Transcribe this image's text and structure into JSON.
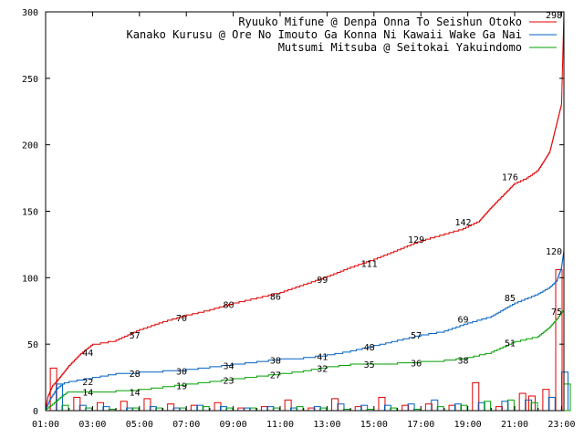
{
  "chart_data": {
    "type": "line",
    "title": "",
    "xlabel": "",
    "ylabel": "",
    "ylim": [
      0,
      300
    ],
    "xlim": [
      0,
      22.1
    ],
    "grid": false,
    "legend_placement": "top-right",
    "x_ticks": [
      "01:00",
      "03:00",
      "05:00",
      "07:00",
      "09:00",
      "11:00",
      "13:00",
      "15:00",
      "17:00",
      "19:00",
      "21:00",
      "23:00"
    ],
    "y_ticks": [
      0,
      50,
      100,
      150,
      200,
      250,
      300
    ],
    "series": [
      {
        "name": "Ryuuko Mifune @ Denpa Onna To Seishun Otoko",
        "color": "#e00000",
        "cumulative": [
          [
            0,
            0
          ],
          [
            0.1,
            10
          ],
          [
            0.3,
            18
          ],
          [
            0.6,
            24
          ],
          [
            1,
            33
          ],
          [
            1.5,
            42
          ],
          [
            2,
            49
          ],
          [
            3,
            52
          ],
          [
            4,
            60
          ],
          [
            5,
            66
          ],
          [
            6,
            71
          ],
          [
            7,
            75
          ],
          [
            8,
            80
          ],
          [
            9,
            84
          ],
          [
            10,
            88
          ],
          [
            11,
            94
          ],
          [
            12,
            100
          ],
          [
            13,
            107
          ],
          [
            14,
            113
          ],
          [
            15,
            120
          ],
          [
            16,
            127
          ],
          [
            17,
            132
          ],
          [
            17.8,
            136
          ],
          [
            18.5,
            142
          ],
          [
            19,
            152
          ],
          [
            19.5,
            161
          ],
          [
            20,
            170
          ],
          [
            20.5,
            174
          ],
          [
            21,
            180
          ],
          [
            21.5,
            194
          ],
          [
            22,
            230
          ],
          [
            22.05,
            265
          ],
          [
            22.1,
            298
          ]
        ],
        "data_labels": [
          {
            "x": 1.8,
            "y": 44,
            "text": "44"
          },
          {
            "x": 3.8,
            "y": 57,
            "text": "57"
          },
          {
            "x": 5.8,
            "y": 70,
            "text": "70"
          },
          {
            "x": 7.8,
            "y": 80,
            "text": "80"
          },
          {
            "x": 9.8,
            "y": 86,
            "text": "86"
          },
          {
            "x": 11.8,
            "y": 99,
            "text": "99"
          },
          {
            "x": 13.8,
            "y": 111,
            "text": "111"
          },
          {
            "x": 15.8,
            "y": 129,
            "text": "129"
          },
          {
            "x": 17.8,
            "y": 142,
            "text": "142"
          },
          {
            "x": 19.8,
            "y": 176,
            "text": "176"
          },
          {
            "x": 21.8,
            "y": 298,
            "text": "298"
          }
        ],
        "bars": [
          [
            0.2,
            32
          ],
          [
            1.2,
            10
          ],
          [
            2.2,
            6
          ],
          [
            3.2,
            7
          ],
          [
            4.2,
            9
          ],
          [
            5.2,
            5
          ],
          [
            6.2,
            4
          ],
          [
            7.2,
            6
          ],
          [
            8.2,
            2
          ],
          [
            9.2,
            3
          ],
          [
            10.2,
            8
          ],
          [
            11.2,
            2
          ],
          [
            12.2,
            9
          ],
          [
            13.2,
            3
          ],
          [
            14.2,
            10
          ],
          [
            15.2,
            4
          ],
          [
            16.2,
            5
          ],
          [
            17.2,
            4
          ],
          [
            18.2,
            21
          ],
          [
            19.2,
            3
          ],
          [
            20.2,
            13
          ],
          [
            20.6,
            11
          ],
          [
            21.2,
            16
          ],
          [
            21.75,
            106
          ]
        ]
      },
      {
        "name": "Kanako Kurusu @ Ore No Imouto Ga Konna Ni Kawaii Wake Ga Nai",
        "color": "#0060c0",
        "cumulative": [
          [
            0,
            0
          ],
          [
            0.2,
            8
          ],
          [
            0.5,
            16
          ],
          [
            0.8,
            20
          ],
          [
            1,
            21
          ],
          [
            2,
            24
          ],
          [
            3,
            27
          ],
          [
            4,
            28
          ],
          [
            5,
            29
          ],
          [
            6,
            30
          ],
          [
            7,
            32
          ],
          [
            8,
            34
          ],
          [
            9,
            36
          ],
          [
            10,
            38
          ],
          [
            11,
            39
          ],
          [
            12,
            41
          ],
          [
            13,
            44
          ],
          [
            14,
            48
          ],
          [
            15,
            52
          ],
          [
            16,
            56
          ],
          [
            17,
            59
          ],
          [
            18,
            65
          ],
          [
            19,
            70
          ],
          [
            20,
            80
          ],
          [
            21,
            87
          ],
          [
            21.5,
            92
          ],
          [
            21.8,
            97
          ],
          [
            22,
            107
          ],
          [
            22.1,
            120
          ]
        ],
        "data_labels": [
          {
            "x": 1.8,
            "y": 22,
            "text": "22"
          },
          {
            "x": 3.8,
            "y": 28,
            "text": "28"
          },
          {
            "x": 5.8,
            "y": 30,
            "text": "30"
          },
          {
            "x": 7.8,
            "y": 34,
            "text": "34"
          },
          {
            "x": 9.8,
            "y": 38,
            "text": "38"
          },
          {
            "x": 11.8,
            "y": 41,
            "text": "41"
          },
          {
            "x": 13.8,
            "y": 48,
            "text": "48"
          },
          {
            "x": 15.8,
            "y": 57,
            "text": "57"
          },
          {
            "x": 17.8,
            "y": 69,
            "text": "69"
          },
          {
            "x": 19.8,
            "y": 85,
            "text": "85"
          },
          {
            "x": 21.8,
            "y": 120,
            "text": "120"
          }
        ],
        "bars": [
          [
            0.45,
            20
          ],
          [
            1.45,
            4
          ],
          [
            2.45,
            3
          ],
          [
            3.45,
            2
          ],
          [
            4.45,
            3
          ],
          [
            5.45,
            2
          ],
          [
            6.45,
            4
          ],
          [
            7.45,
            3
          ],
          [
            8.45,
            2
          ],
          [
            9.45,
            3
          ],
          [
            10.45,
            2
          ],
          [
            11.45,
            3
          ],
          [
            12.45,
            5
          ],
          [
            13.45,
            4
          ],
          [
            14.45,
            4
          ],
          [
            15.45,
            5
          ],
          [
            16.45,
            8
          ],
          [
            17.45,
            5
          ],
          [
            18.45,
            6
          ],
          [
            19.45,
            7
          ],
          [
            20.45,
            8
          ],
          [
            21.45,
            10
          ],
          [
            22.0,
            29
          ]
        ]
      },
      {
        "name": "Mutsumi Mitsuba @ Seitokai Yakuindomo",
        "color": "#00a000",
        "cumulative": [
          [
            0,
            0
          ],
          [
            0.3,
            4
          ],
          [
            0.7,
            10
          ],
          [
            1,
            14
          ],
          [
            2,
            14
          ],
          [
            3,
            14
          ],
          [
            4,
            15
          ],
          [
            5,
            17
          ],
          [
            6,
            19
          ],
          [
            7,
            21
          ],
          [
            8,
            23
          ],
          [
            9,
            25
          ],
          [
            10,
            27
          ],
          [
            11,
            29
          ],
          [
            12,
            32
          ],
          [
            13,
            34
          ],
          [
            14,
            35
          ],
          [
            15,
            35
          ],
          [
            16,
            36
          ],
          [
            17,
            37
          ],
          [
            18,
            39
          ],
          [
            19,
            43
          ],
          [
            20,
            51
          ],
          [
            21,
            55
          ],
          [
            21.5,
            62
          ],
          [
            21.8,
            68
          ],
          [
            22,
            73
          ],
          [
            22.1,
            75
          ]
        ],
        "data_labels": [
          {
            "x": 1.8,
            "y": 14,
            "text": "14"
          },
          {
            "x": 3.8,
            "y": 14,
            "text": "14"
          },
          {
            "x": 5.8,
            "y": 19,
            "text": "19"
          },
          {
            "x": 7.8,
            "y": 23,
            "text": "23"
          },
          {
            "x": 9.8,
            "y": 27,
            "text": "27"
          },
          {
            "x": 11.8,
            "y": 32,
            "text": "32"
          },
          {
            "x": 13.8,
            "y": 35,
            "text": "35"
          },
          {
            "x": 15.8,
            "y": 36,
            "text": "36"
          },
          {
            "x": 17.8,
            "y": 38,
            "text": "38"
          },
          {
            "x": 19.8,
            "y": 51,
            "text": "51"
          },
          {
            "x": 21.8,
            "y": 75,
            "text": "75"
          }
        ],
        "bars": [
          [
            0.7,
            4
          ],
          [
            1.7,
            2
          ],
          [
            2.7,
            1
          ],
          [
            3.7,
            2
          ],
          [
            4.7,
            2
          ],
          [
            5.7,
            2
          ],
          [
            6.7,
            3
          ],
          [
            7.7,
            2
          ],
          [
            8.7,
            2
          ],
          [
            9.7,
            2
          ],
          [
            10.7,
            3
          ],
          [
            11.7,
            2
          ],
          [
            12.7,
            1
          ],
          [
            13.7,
            1
          ],
          [
            14.7,
            2
          ],
          [
            15.7,
            1
          ],
          [
            16.7,
            3
          ],
          [
            17.7,
            4
          ],
          [
            18.7,
            7
          ],
          [
            19.7,
            8
          ],
          [
            20.7,
            6
          ],
          [
            22.1,
            20
          ]
        ]
      }
    ]
  }
}
